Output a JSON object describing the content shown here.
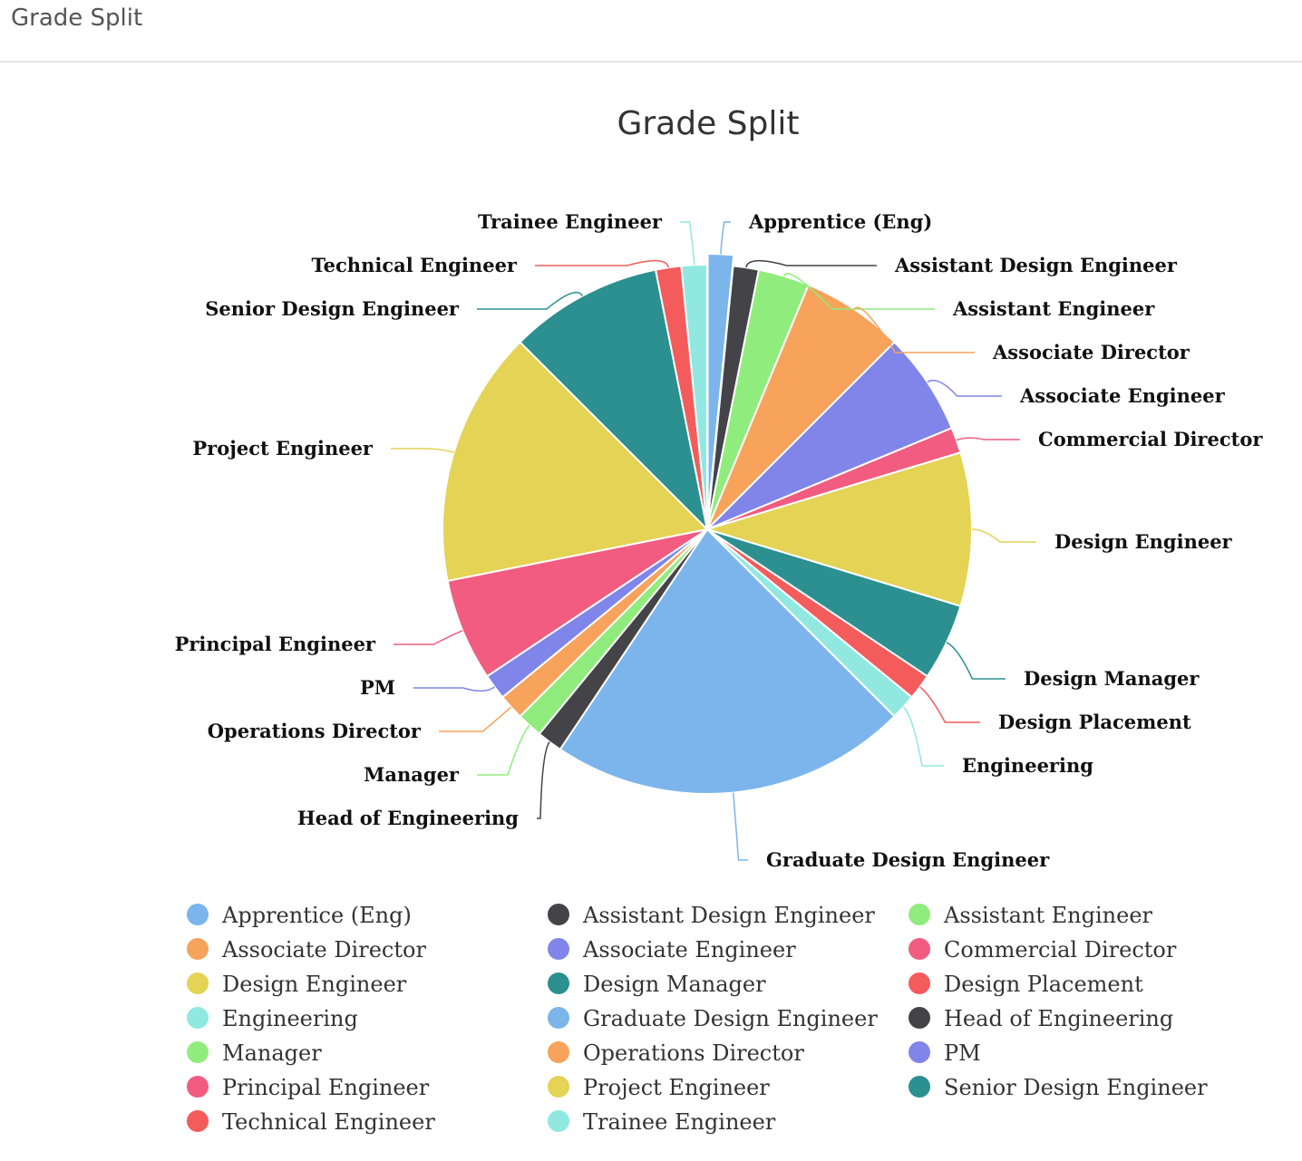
{
  "panel": {
    "title": "Grade Split"
  },
  "chart_data": {
    "type": "pie",
    "title": "Grade Split",
    "legend_position": "bottom",
    "slices": [
      {
        "label": "Apprentice (Eng)",
        "value": 1,
        "color": "#7cb5ec",
        "sliced": true
      },
      {
        "label": "Assistant Design Engineer",
        "value": 1,
        "color": "#434348"
      },
      {
        "label": "Assistant Engineer",
        "value": 2,
        "color": "#90ed7d"
      },
      {
        "label": "Associate Director",
        "value": 4,
        "color": "#f7a35c"
      },
      {
        "label": "Associate Engineer",
        "value": 4,
        "color": "#8085e9"
      },
      {
        "label": "Commercial Director",
        "value": 1,
        "color": "#f15c80"
      },
      {
        "label": "Design Engineer",
        "value": 6,
        "color": "#e4d354"
      },
      {
        "label": "Design Manager",
        "value": 3,
        "color": "#2b908f"
      },
      {
        "label": "Design Placement",
        "value": 1,
        "color": "#f45b5b"
      },
      {
        "label": "Engineering",
        "value": 1,
        "color": "#91e8e1"
      },
      {
        "label": "Graduate Design Engineer",
        "value": 14,
        "color": "#7cb5ec"
      },
      {
        "label": "Head of Engineering",
        "value": 1,
        "color": "#434348"
      },
      {
        "label": "Manager",
        "value": 1,
        "color": "#90ed7d"
      },
      {
        "label": "Operations Director",
        "value": 1,
        "color": "#f7a35c"
      },
      {
        "label": "PM",
        "value": 1,
        "color": "#8085e9"
      },
      {
        "label": "Principal Engineer",
        "value": 4,
        "color": "#f15c80"
      },
      {
        "label": "Project Engineer",
        "value": 10,
        "color": "#e4d354"
      },
      {
        "label": "Senior Design Engineer",
        "value": 6,
        "color": "#2b908f"
      },
      {
        "label": "Technical Engineer",
        "value": 1,
        "color": "#f45b5b"
      },
      {
        "label": "Trainee Engineer",
        "value": 1,
        "color": "#91e8e1"
      }
    ]
  }
}
